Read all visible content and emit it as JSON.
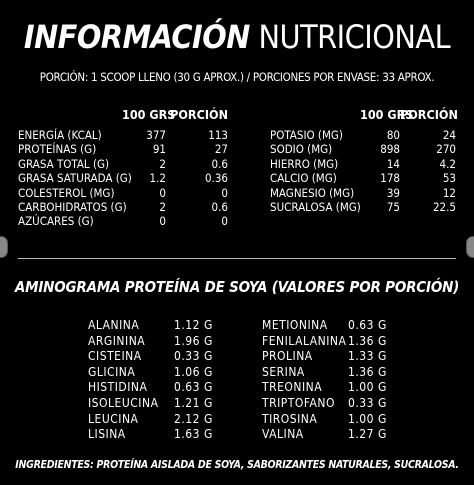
{
  "title": {
    "bold": "INFORMACIÓN",
    "light": "NUTRICIONAL"
  },
  "portion_text": "PORCIÓN: 1 SCOOP LLENO (30 G APROX.) / PORCIONES POR ENVASE: 33 APROX.",
  "nutrition": {
    "headers": {
      "per100": "100 GRS",
      "perPortion": "PORCIÓN"
    },
    "left": [
      {
        "name": "ENERGÍA (KCAL)",
        "per100": "377",
        "portion": "113"
      },
      {
        "name": "PROTEÍNAS (G)",
        "per100": "91",
        "portion": "27"
      },
      {
        "name": "GRASA TOTAL (G)",
        "per100": "2",
        "portion": "0.6"
      },
      {
        "name": "GRASA SATURADA (G)",
        "per100": "1.2",
        "portion": "0.36"
      },
      {
        "name": "COLESTEROL (MG)",
        "per100": "0",
        "portion": "0"
      },
      {
        "name": "CARBOHIDRATOS (G)",
        "per100": "2",
        "portion": "0.6"
      },
      {
        "name": "AZÚCARES (G)",
        "per100": "0",
        "portion": "0"
      }
    ],
    "right": [
      {
        "name": "POTASIO (MG)",
        "per100": "80",
        "portion": "24"
      },
      {
        "name": "SODIO (MG)",
        "per100": "898",
        "portion": "270"
      },
      {
        "name": "HIERRO (MG)",
        "per100": "14",
        "portion": "4.2"
      },
      {
        "name": "CALCIO (MG)",
        "per100": "178",
        "portion": "53"
      },
      {
        "name": "MAGNESIO (MG)",
        "per100": "39",
        "portion": "12"
      },
      {
        "name": "SUCRALOSA (MG)",
        "per100": "75",
        "portion": "22.5"
      }
    ]
  },
  "aminogram": {
    "title": "AMINOGRAMA PROTEÍNA DE SOYA (VALORES POR PORCIÓN)",
    "left": [
      {
        "name": "ALANINA",
        "value": "1.12 G"
      },
      {
        "name": "ARGININA",
        "value": "1.96 G"
      },
      {
        "name": "CISTEINA",
        "value": "0.33 G"
      },
      {
        "name": "GLICINA",
        "value": "1.06 G"
      },
      {
        "name": "HISTIDINA",
        "value": "0.63 G"
      },
      {
        "name": "ISOLEUCINA",
        "value": "1.21 G"
      },
      {
        "name": "LEUCINA",
        "value": "2.12 G"
      },
      {
        "name": "LISINA",
        "value": "1.63 G"
      }
    ],
    "right": [
      {
        "name": "METIONINA",
        "value": "0.63 G"
      },
      {
        "name": "FENILALANINA",
        "value": "1.36 G"
      },
      {
        "name": "PROLINA",
        "value": "1.33 G"
      },
      {
        "name": "SERINA",
        "value": "1.36 G"
      },
      {
        "name": "TREONINA",
        "value": "1.00 G"
      },
      {
        "name": "TRIPTOFANO",
        "value": "0.33 G"
      },
      {
        "name": "TIROSINA",
        "value": "1.00 G"
      },
      {
        "name": "VALINA",
        "value": "1.27 G"
      }
    ]
  },
  "ingredients": "INGREDIENTES: PROTEÍNA AISLADA DE SOYA, SABORIZANTES NATURALES, SUCRALOSA.",
  "colors": {
    "background": "#000000",
    "text": "#ffffff",
    "divider": "#bbbbbb"
  }
}
